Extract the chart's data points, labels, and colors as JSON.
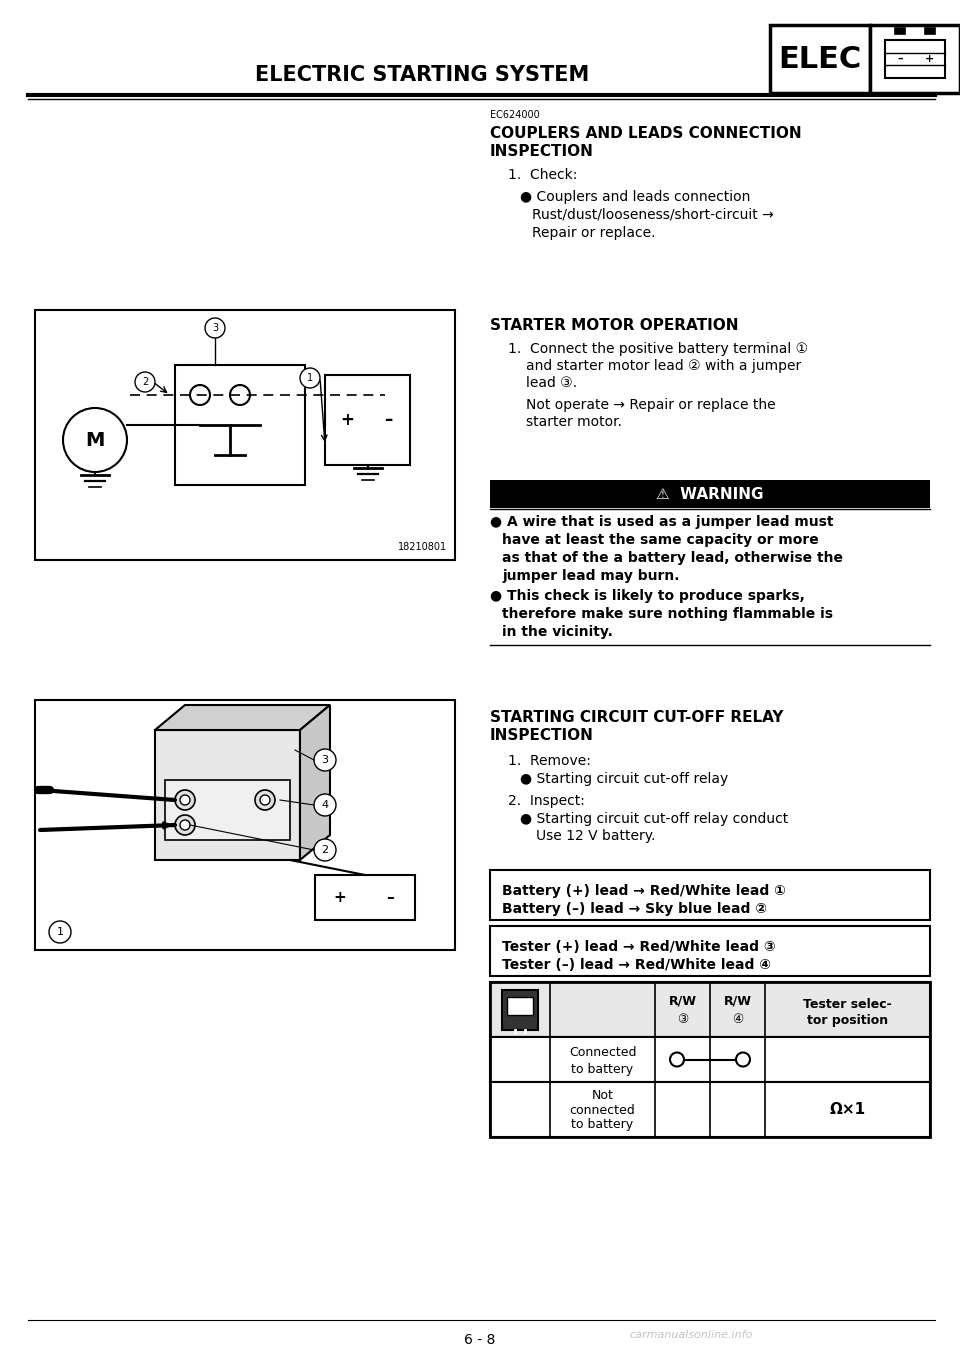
{
  "title": "ELECTRIC STARTING SYSTEM",
  "elec_label": "ELEC",
  "section_code": "EC624000",
  "page_footer": "6 - 8",
  "watermark": "carmanualsonline.info",
  "bg_color": "#ffffff",
  "text_color": "#000000",
  "diagram1_label": "18210801",
  "figw": 9.6,
  "figh": 13.58,
  "dpi": 100
}
